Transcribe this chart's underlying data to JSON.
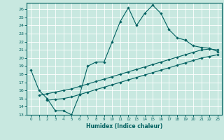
{
  "xlabel": "Humidex (Indice chaleur)",
  "bg_color": "#c8e8e0",
  "line_color": "#006060",
  "grid_color": "#ffffff",
  "xlim": [
    -0.5,
    23.5
  ],
  "ylim": [
    13,
    26.8
  ],
  "xticks": [
    0,
    1,
    2,
    3,
    4,
    5,
    6,
    7,
    8,
    9,
    10,
    11,
    12,
    13,
    14,
    15,
    16,
    17,
    18,
    19,
    20,
    21,
    22,
    23
  ],
  "yticks": [
    13,
    14,
    15,
    16,
    17,
    18,
    19,
    20,
    21,
    22,
    23,
    24,
    25,
    26
  ],
  "line1_x": [
    0,
    1,
    2,
    3,
    4,
    5,
    6,
    7,
    8,
    9,
    10,
    11,
    12,
    13,
    14,
    15,
    16,
    17,
    18,
    19
  ],
  "line1_y": [
    18.5,
    16.0,
    15.0,
    13.5,
    13.5,
    13.0,
    15.5,
    19.0,
    19.5,
    19.5,
    22.0,
    24.5,
    26.2,
    24.0,
    25.5,
    26.5,
    25.5,
    23.5,
    22.5,
    22.2
  ],
  "line2_x": [
    19,
    20,
    21,
    22,
    23
  ],
  "line2_y": [
    22.2,
    21.5,
    21.3,
    21.2,
    20.8
  ],
  "line3_x": [
    1,
    2,
    3,
    4,
    5,
    6,
    7,
    8,
    9,
    10,
    11,
    12,
    13,
    14,
    15,
    16,
    17,
    18,
    19,
    20,
    21,
    22,
    23
  ],
  "line3_y": [
    15.4,
    15.6,
    15.8,
    16.0,
    16.2,
    16.5,
    16.8,
    17.1,
    17.4,
    17.7,
    18.0,
    18.3,
    18.6,
    18.9,
    19.2,
    19.5,
    19.8,
    20.1,
    20.4,
    20.7,
    21.0,
    21.1,
    21.0
  ],
  "line4_x": [
    2,
    3,
    4,
    5,
    6,
    7,
    8,
    9,
    10,
    11,
    12,
    13,
    14,
    15,
    16,
    17,
    18,
    19,
    20,
    21,
    22,
    23
  ],
  "line4_y": [
    14.8,
    14.9,
    15.0,
    15.2,
    15.5,
    15.8,
    16.1,
    16.4,
    16.7,
    17.0,
    17.3,
    17.6,
    17.9,
    18.2,
    18.5,
    18.8,
    19.1,
    19.4,
    19.7,
    20.0,
    20.2,
    20.4
  ]
}
